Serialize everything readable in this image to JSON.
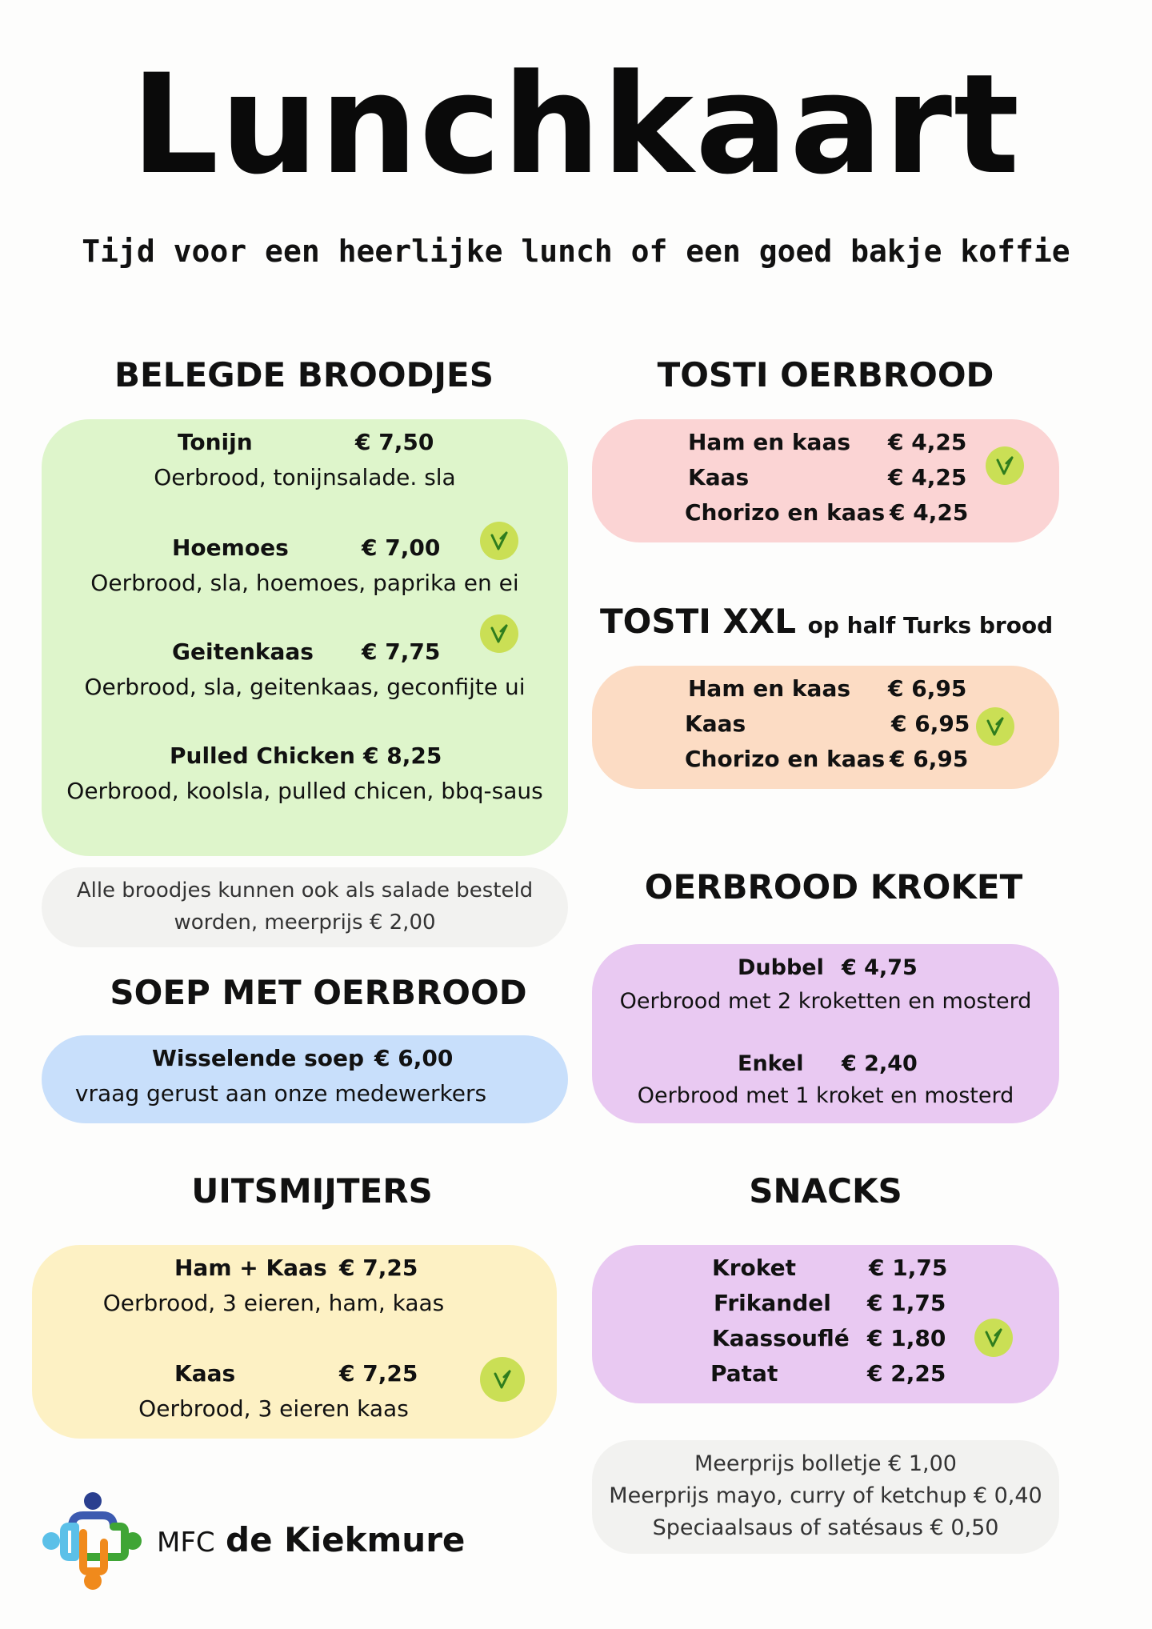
{
  "header": {
    "title": "Lunchkaart",
    "subtitle": "Tijd voor een heerlijke lunch of een goed bakje koffie"
  },
  "belegde_broodjes": {
    "heading": "BELEGDE BROODJES",
    "items": [
      {
        "name": "Tonijn",
        "price": "€ 7,50",
        "desc": "Oerbrood, tonijnsalade. sla",
        "vegetarian": false
      },
      {
        "name": "Hoemoes",
        "price": "€ 7,00",
        "desc": "Oerbrood, sla, hoemoes, paprika en ei",
        "vegetarian": true
      },
      {
        "name": "Geitenkaas",
        "price": "€ 7,75",
        "desc": "Oerbrood, sla, geitenkaas, geconfijte ui",
        "vegetarian": true
      },
      {
        "name": "Pulled Chicken",
        "price": "€ 8,25",
        "desc": "Oerbrood, koolsla, pulled chicen, bbq-saus",
        "vegetarian": false
      }
    ],
    "note_lines": [
      "Alle broodjes kunnen ook als salade besteld",
      "worden, meerprijs € 2,00"
    ]
  },
  "soep": {
    "heading": "SOEP MET OERBROOD",
    "item": {
      "name": "Wisselende soep",
      "price": "€ 6,00",
      "desc": "vraag gerust aan onze medewerkers"
    }
  },
  "uitsmijters": {
    "heading": "UITSMIJTERS",
    "items": [
      {
        "name": "Ham + Kaas",
        "price": "€ 7,25",
        "desc": "Oerbrood, 3 eieren, ham, kaas",
        "vegetarian": false
      },
      {
        "name": "Kaas",
        "price": "€ 7,25",
        "desc": "Oerbrood, 3 eieren kaas",
        "vegetarian": true
      }
    ]
  },
  "tosti_oerbrood": {
    "heading": "TOSTI OERBROOD",
    "items": [
      {
        "name": "Ham en kaas",
        "price": "€ 4,25"
      },
      {
        "name": "Kaas",
        "price": "€ 4,25"
      },
      {
        "name": "Chorizo en kaas",
        "price": "€ 4,25"
      }
    ]
  },
  "tosti_xxl": {
    "heading": "TOSTI XXL",
    "heading_suffix": "op half Turks brood",
    "items": [
      {
        "name": "Ham en kaas",
        "price": "€ 6,95"
      },
      {
        "name": "Kaas",
        "price": "€ 6,95"
      },
      {
        "name": "Chorizo en kaas",
        "price": "€ 6,95"
      }
    ]
  },
  "kroket": {
    "heading": "OERBROOD KROKET",
    "items": [
      {
        "name": "Dubbel",
        "price": "€ 4,75",
        "desc": "Oerbrood met 2 kroketten en mosterd"
      },
      {
        "name": "Enkel",
        "price": "€ 2,40",
        "desc": "Oerbrood met 1 kroket en mosterd"
      }
    ]
  },
  "snacks": {
    "heading": "SNACKS",
    "items": [
      {
        "name": "Kroket",
        "price": "€ 1,75"
      },
      {
        "name": "Frikandel",
        "price": "€ 1,75"
      },
      {
        "name": "Kaassouflé",
        "price": "€ 1,80"
      },
      {
        "name": "Patat",
        "price": "€ 2,25"
      }
    ],
    "note_lines": [
      "Meerprijs bolletje € 1,00",
      "Meerprijs mayo, curry of ketchup € 0,40",
      "Speciaalsaus of satésaus € 0,50"
    ]
  },
  "footer": {
    "logo_prefix": "MFC",
    "logo_name": "de Kiekmure"
  },
  "colors": {
    "green_box": "#def5cb",
    "pink_box": "#fbd4d4",
    "peach_box": "#fcdcc4",
    "lilac_box": "#e9c9f2",
    "blue_box": "#c8dffb",
    "yellow_box": "#fdf1c4",
    "vegetarian_badge": "#cadf55"
  },
  "icons": {
    "vegetarian": "v-leaf-icon",
    "logo": "people-circle-logo"
  }
}
